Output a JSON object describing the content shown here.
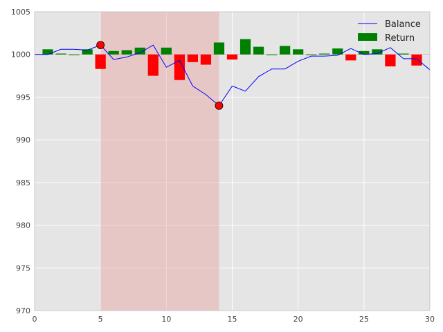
{
  "chart_data": {
    "type": "bar",
    "title": "",
    "xlabel": "",
    "ylabel": "",
    "xlim": [
      0,
      30
    ],
    "ylim": [
      970,
      1005
    ],
    "xticks": [
      0,
      5,
      10,
      15,
      20,
      25,
      30
    ],
    "yticks": [
      970,
      975,
      980,
      985,
      990,
      995,
      1000,
      1005
    ],
    "grid": true,
    "background": "#e5e5e5",
    "legend": {
      "position": "top-right",
      "entries": [
        "Balance",
        "Return"
      ]
    },
    "baseline": 1000,
    "shaded_region": {
      "x_start": 5,
      "x_end": 14,
      "color": "#e8a0a0"
    },
    "markers": [
      {
        "x": 5,
        "y": 1001.1,
        "color": "#ff0000"
      },
      {
        "x": 14,
        "y": 994.0,
        "color": "#ff0000"
      }
    ],
    "series": [
      {
        "name": "Balance",
        "type": "line",
        "color": "#0000ff",
        "x": [
          0,
          1,
          2,
          3,
          4,
          5,
          6,
          7,
          8,
          9,
          10,
          11,
          12,
          13,
          14,
          15,
          16,
          17,
          18,
          19,
          20,
          21,
          22,
          23,
          24,
          25,
          26,
          27,
          28,
          29,
          30
        ],
        "y": [
          1000.0,
          1000.0,
          1000.6,
          1000.6,
          1000.5,
          1001.1,
          999.4,
          999.7,
          1000.2,
          1001.1,
          998.5,
          999.3,
          996.3,
          995.3,
          994.0,
          996.3,
          995.7,
          997.4,
          998.3,
          998.3,
          999.2,
          999.8,
          999.8,
          999.9,
          1000.7,
          1000.0,
          1000.1,
          1000.8,
          999.5,
          999.5,
          998.2
        ]
      },
      {
        "name": "Return",
        "type": "bar",
        "positive_color": "#008000",
        "negative_color": "#ff0000",
        "x": [
          1,
          2,
          3,
          4,
          5,
          6,
          7,
          8,
          9,
          10,
          11,
          12,
          13,
          14,
          15,
          16,
          17,
          18,
          19,
          20,
          21,
          22,
          23,
          24,
          25,
          26,
          27,
          28,
          29
        ],
        "values": [
          0.6,
          0.1,
          0.0,
          0.6,
          -1.7,
          0.4,
          0.5,
          0.8,
          -2.5,
          0.8,
          -3.0,
          -0.9,
          -1.2,
          1.4,
          -0.6,
          1.8,
          0.9,
          0.0,
          1.0,
          0.6,
          0.0,
          0.1,
          0.7,
          -0.7,
          0.4,
          0.6,
          -1.4,
          0.1,
          -1.3
        ]
      }
    ]
  }
}
